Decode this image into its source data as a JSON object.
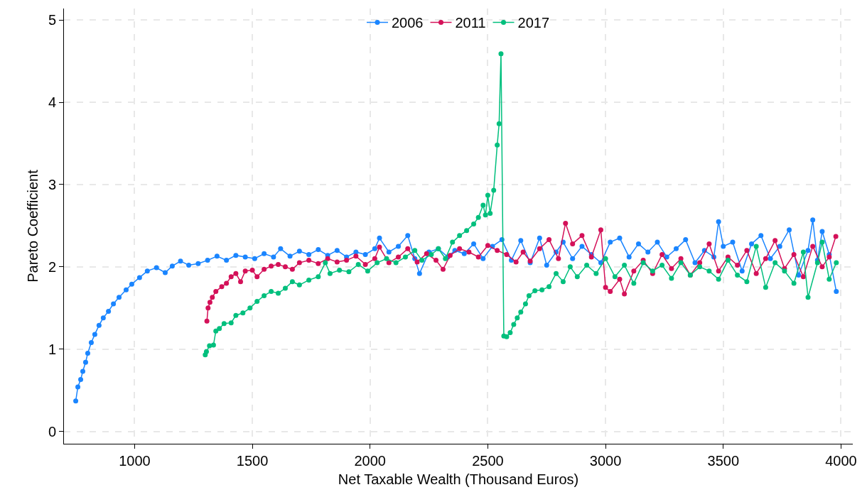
{
  "chart_data": {
    "type": "line",
    "xlabel": "Net Taxable Wealth (Thousand Euros)",
    "ylabel": "Pareto Coefficient",
    "xlim": [
      700,
      4050
    ],
    "xticks": [
      1000,
      1500,
      2000,
      2500,
      3000,
      3500,
      4000
    ],
    "ylim": [
      -0.15,
      5.14
    ],
    "yticks": [
      0,
      1,
      2,
      3,
      4,
      5
    ],
    "grid": true,
    "legend": "top",
    "marker": "circle",
    "line_style": "solid",
    "series": [
      {
        "name": "2006",
        "color": "#1a85ff",
        "x": [
          750,
          759,
          771,
          780,
          792,
          801,
          816,
          831,
          849,
          867,
          889,
          910,
          934,
          964,
          988,
          1021,
          1054,
          1093,
          1130,
          1160,
          1195,
          1230,
          1270,
          1310,
          1350,
          1390,
          1430,
          1470,
          1510,
          1550,
          1590,
          1620,
          1660,
          1700,
          1740,
          1780,
          1820,
          1860,
          1900,
          1940,
          1980,
          2020,
          2040,
          2080,
          2120,
          2160,
          2190,
          2210,
          2250,
          2290,
          2330,
          2360,
          2400,
          2440,
          2480,
          2520,
          2560,
          2600,
          2640,
          2680,
          2720,
          2750,
          2790,
          2820,
          2860,
          2900,
          2940,
          2980,
          3020,
          3060,
          3100,
          3140,
          3180,
          3220,
          3260,
          3300,
          3340,
          3380,
          3420,
          3460,
          3480,
          3500,
          3540,
          3580,
          3620,
          3660,
          3700,
          3740,
          3780,
          3820,
          3860,
          3880,
          3900,
          3920,
          3950,
          3980
        ],
        "values": [
          0.37,
          0.54,
          0.63,
          0.73,
          0.84,
          0.95,
          1.08,
          1.18,
          1.29,
          1.38,
          1.46,
          1.55,
          1.63,
          1.72,
          1.79,
          1.87,
          1.95,
          1.99,
          1.93,
          2.01,
          2.07,
          2.02,
          2.04,
          2.08,
          2.13,
          2.08,
          2.14,
          2.12,
          2.1,
          2.16,
          2.12,
          2.22,
          2.13,
          2.19,
          2.15,
          2.21,
          2.14,
          2.2,
          2.12,
          2.18,
          2.15,
          2.22,
          2.35,
          2.18,
          2.25,
          2.38,
          2.1,
          1.92,
          2.18,
          2.22,
          2.12,
          2.2,
          2.16,
          2.28,
          2.1,
          2.25,
          2.33,
          2.08,
          2.32,
          2.05,
          2.35,
          2.02,
          2.18,
          2.3,
          2.1,
          2.25,
          2.15,
          2.05,
          2.3,
          2.35,
          2.12,
          2.28,
          2.18,
          2.3,
          2.12,
          2.22,
          2.33,
          2.05,
          2.2,
          2.12,
          2.55,
          2.25,
          2.3,
          1.95,
          2.28,
          2.38,
          2.1,
          2.25,
          2.45,
          1.9,
          2.2,
          2.57,
          2.08,
          2.43,
          2.15,
          1.7
        ]
      },
      {
        "name": "2011",
        "color": "#d41159",
        "x": [
          1307,
          1312,
          1320,
          1330,
          1345,
          1370,
          1390,
          1410,
          1430,
          1450,
          1470,
          1500,
          1520,
          1550,
          1580,
          1610,
          1640,
          1670,
          1700,
          1740,
          1780,
          1820,
          1860,
          1900,
          1940,
          1980,
          2020,
          2040,
          2080,
          2120,
          2160,
          2200,
          2240,
          2280,
          2310,
          2340,
          2380,
          2420,
          2460,
          2500,
          2540,
          2580,
          2620,
          2650,
          2680,
          2720,
          2760,
          2800,
          2830,
          2860,
          2900,
          2940,
          2980,
          3000,
          3020,
          3060,
          3080,
          3120,
          3160,
          3200,
          3240,
          3280,
          3320,
          3360,
          3400,
          3440,
          3480,
          3520,
          3560,
          3600,
          3640,
          3680,
          3720,
          3760,
          3800,
          3840,
          3880,
          3920,
          3950,
          3978
        ],
        "values": [
          1.34,
          1.5,
          1.57,
          1.63,
          1.7,
          1.76,
          1.8,
          1.88,
          1.92,
          1.82,
          1.95,
          1.96,
          1.88,
          1.97,
          2.01,
          2.03,
          2,
          1.97,
          2.05,
          2.08,
          2.04,
          2.1,
          2.06,
          2.08,
          2.13,
          2.03,
          2.1,
          2.24,
          2.05,
          2.12,
          2.22,
          2.06,
          2.16,
          2.08,
          1.97,
          2.14,
          2.22,
          2.18,
          2.12,
          2.26,
          2.2,
          2.15,
          2.06,
          2.18,
          2.07,
          2.22,
          2.33,
          2.1,
          2.53,
          2.28,
          2.38,
          2.12,
          2.45,
          1.75,
          1.7,
          1.85,
          1.67,
          1.95,
          2.08,
          1.92,
          2.15,
          1.98,
          2.1,
          1.9,
          2.05,
          2.28,
          1.95,
          2.12,
          2.02,
          2.2,
          1.92,
          2.1,
          2.32,
          1.98,
          2.15,
          1.88,
          2.25,
          2,
          2.12,
          2.37
        ]
      },
      {
        "name": "2017",
        "color": "#00bf7d",
        "x": [
          1300,
          1305,
          1318,
          1335,
          1345,
          1360,
          1380,
          1410,
          1430,
          1460,
          1490,
          1520,
          1550,
          1580,
          1610,
          1640,
          1670,
          1700,
          1740,
          1780,
          1810,
          1830,
          1870,
          1910,
          1950,
          1990,
          2030,
          2070,
          2110,
          2150,
          2190,
          2220,
          2260,
          2290,
          2320,
          2350,
          2380,
          2410,
          2440,
          2460,
          2480,
          2490,
          2500,
          2510,
          2525,
          2540,
          2548,
          2556,
          2568,
          2580,
          2595,
          2610,
          2625,
          2640,
          2660,
          2675,
          2700,
          2730,
          2760,
          2790,
          2820,
          2850,
          2880,
          2920,
          2960,
          3000,
          3040,
          3080,
          3120,
          3160,
          3200,
          3240,
          3280,
          3320,
          3360,
          3400,
          3440,
          3480,
          3520,
          3560,
          3600,
          3640,
          3680,
          3720,
          3760,
          3800,
          3840,
          3860,
          3900,
          3920,
          3950,
          3980
        ],
        "values": [
          0.93,
          0.97,
          1.04,
          1.05,
          1.22,
          1.25,
          1.31,
          1.32,
          1.41,
          1.44,
          1.5,
          1.58,
          1.65,
          1.7,
          1.68,
          1.74,
          1.82,
          1.78,
          1.84,
          1.88,
          2.05,
          1.92,
          1.96,
          1.94,
          2.03,
          1.95,
          2.05,
          2.1,
          2.05,
          2.12,
          2.2,
          2.08,
          2.15,
          2.22,
          2.1,
          2.3,
          2.38,
          2.44,
          2.52,
          2.6,
          2.75,
          2.63,
          2.87,
          2.65,
          2.93,
          3.48,
          3.74,
          4.59,
          1.16,
          1.15,
          1.2,
          1.3,
          1.38,
          1.45,
          1.55,
          1.65,
          1.71,
          1.72,
          1.76,
          1.92,
          1.82,
          2,
          1.88,
          2.02,
          1.92,
          2.1,
          1.88,
          2.02,
          1.8,
          2.05,
          1.95,
          2.02,
          1.86,
          2.05,
          1.9,
          2,
          1.95,
          1.85,
          2.08,
          1.9,
          1.82,
          2.25,
          1.75,
          2.05,
          1.95,
          1.8,
          2.18,
          1.63,
          2.05,
          2.3,
          1.85,
          2.05
        ]
      }
    ]
  }
}
